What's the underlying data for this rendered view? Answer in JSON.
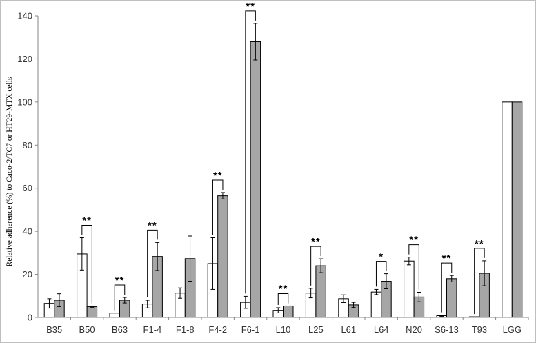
{
  "chart_data": {
    "type": "bar",
    "ylabel": "Relative adherence (%) to Caco-2/TC7 or HT29-MTX cells",
    "ylim": [
      0,
      140
    ],
    "yticks": [
      "0",
      "20",
      "40",
      "60",
      "80",
      "100",
      "120",
      "140"
    ],
    "categories": [
      "B35",
      "B50",
      "B63",
      "F1-4",
      "F1-8",
      "F4-2",
      "F6-1",
      "L10",
      "L25",
      "L61",
      "L64",
      "N20",
      "S6-13",
      "T93",
      "LGG"
    ],
    "series": [
      {
        "color": "#ffffff",
        "values": [
          6.5,
          29.5,
          2,
          6.2,
          11.3,
          25,
          7,
          3.3,
          11.3,
          8.7,
          11.8,
          26.2,
          0.8,
          0.3,
          100
        ],
        "errors": [
          2.2,
          7.5,
          0,
          1.8,
          2.4,
          12,
          2.8,
          1.2,
          2.2,
          1.8,
          1.2,
          1.8,
          0.3,
          0,
          0
        ]
      },
      {
        "color": "#a6a6a6",
        "values": [
          8,
          5,
          8,
          28.3,
          27.3,
          56.5,
          128,
          5.3,
          24,
          5.8,
          16.8,
          9.5,
          18,
          20.5,
          100
        ],
        "errors": [
          3,
          0.3,
          1.3,
          6.5,
          10.5,
          1.5,
          8.5,
          0,
          3.2,
          1.2,
          3.5,
          2.2,
          1.5,
          5.8,
          0
        ]
      }
    ],
    "significance": [
      {
        "category": "B50",
        "label": "**"
      },
      {
        "category": "B63",
        "label": "**"
      },
      {
        "category": "F1-4",
        "label": "**"
      },
      {
        "category": "F4-2",
        "label": "**"
      },
      {
        "category": "F6-1",
        "label": "**"
      },
      {
        "category": "L10",
        "label": "**"
      },
      {
        "category": "L25",
        "label": "**"
      },
      {
        "category": "L64",
        "label": "*"
      },
      {
        "category": "N20",
        "label": "**"
      },
      {
        "category": "S6-13",
        "label": "**"
      },
      {
        "category": "T93",
        "label": "**"
      }
    ],
    "grid": false,
    "legend": "none"
  }
}
